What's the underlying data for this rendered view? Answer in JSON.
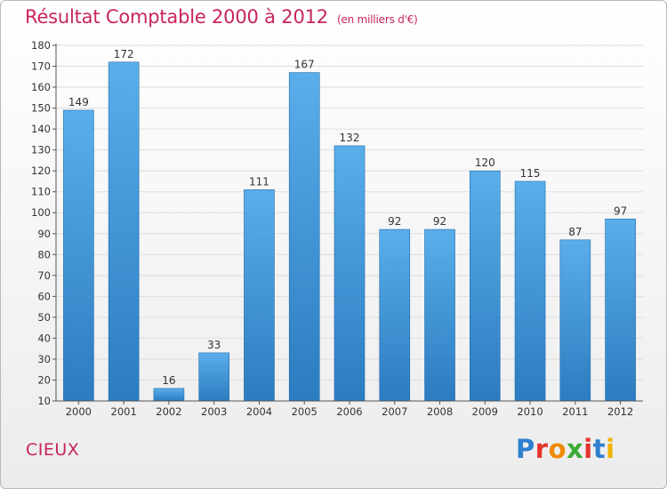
{
  "header": {
    "title": "Résultat Comptable 2000 à 2012",
    "subtitle": "(en milliers d'€)"
  },
  "footer": {
    "commune": "CIEUX",
    "logo_letters": [
      {
        "ch": "P",
        "color": "#2e7fd0"
      },
      {
        "ch": "r",
        "color": "#e6332a"
      },
      {
        "ch": "o",
        "color": "#f08a00"
      },
      {
        "ch": "x",
        "color": "#3aaa35"
      },
      {
        "ch": "i",
        "color": "#e6332a"
      },
      {
        "ch": "t",
        "color": "#2e7fd0"
      },
      {
        "ch": "i",
        "color": "#f0b400"
      }
    ]
  },
  "colors": {
    "bar_top": "#5aaeea",
    "bar_bottom": "#2b7cc0",
    "bar_edge": "#1f6aa8",
    "grid": "#dddddd",
    "axis": "#555555",
    "text": "#333333",
    "accent": "#c8245f"
  },
  "chart_data": {
    "type": "bar",
    "title": "Résultat Comptable 2000 à 2012",
    "subtitle": "(en milliers d'€)",
    "categories": [
      "2000",
      "2001",
      "2002",
      "2003",
      "2004",
      "2005",
      "2006",
      "2007",
      "2008",
      "2009",
      "2010",
      "2011",
      "2012"
    ],
    "values": [
      149,
      172,
      16,
      33,
      111,
      167,
      132,
      92,
      92,
      120,
      115,
      87,
      97
    ],
    "ylim": [
      10,
      180
    ],
    "yticks": [
      10,
      20,
      30,
      40,
      50,
      60,
      70,
      80,
      90,
      100,
      110,
      120,
      130,
      140,
      150,
      160,
      170,
      180
    ],
    "grid": true,
    "xlabel": "",
    "ylabel": ""
  }
}
